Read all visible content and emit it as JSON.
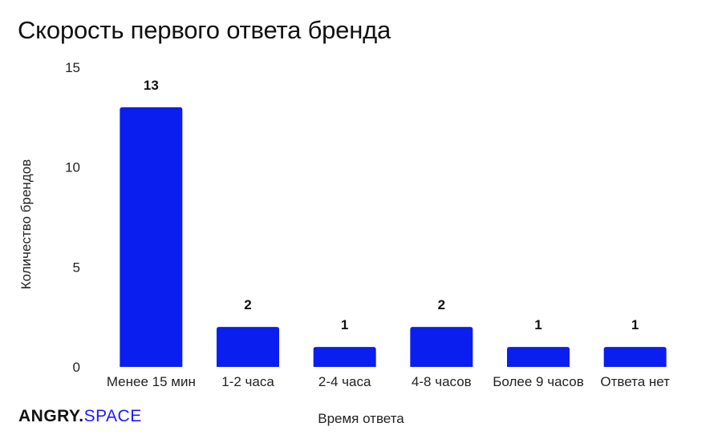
{
  "title": "Скорость первого ответа бренда",
  "logo": {
    "part1": "ANGRY",
    "dot": ".",
    "part2": "SPACE"
  },
  "colors": {
    "bar": "#0a1ef0",
    "text": "#111111"
  },
  "chart_data": {
    "type": "bar",
    "title": "Скорость первого ответа бренда",
    "categories": [
      "Менее 15 мин",
      "1-2 часа",
      "2-4 часа",
      "4-8 часов",
      "Более 9 часов",
      "Ответа нет"
    ],
    "values": [
      13,
      2,
      1,
      2,
      1,
      1
    ],
    "data_labels": [
      "13",
      "2",
      "1",
      "2",
      "1",
      "1"
    ],
    "xlabel": "Время ответа",
    "ylabel": "Количество брендов",
    "ylim": [
      0,
      15
    ],
    "yticks": [
      0,
      5,
      10,
      15
    ],
    "grid": false,
    "legend": "none"
  }
}
